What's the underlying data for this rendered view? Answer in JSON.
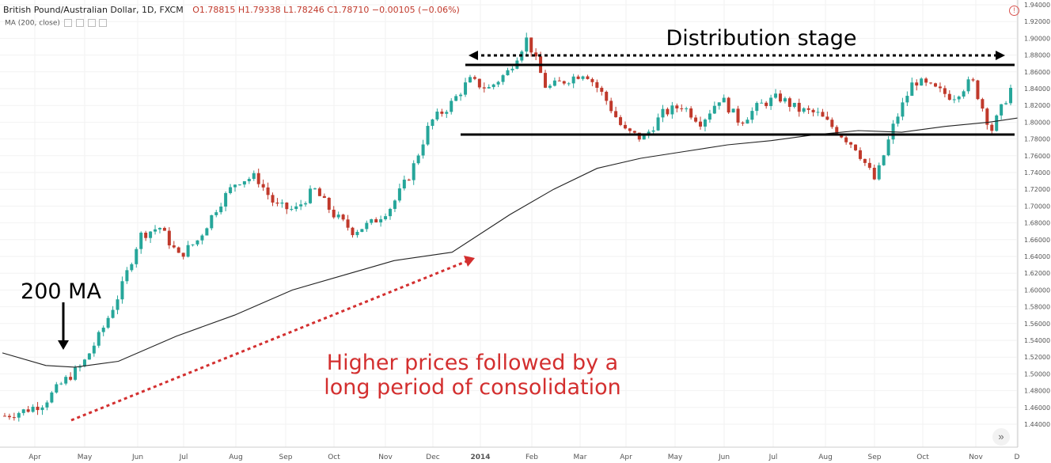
{
  "header": {
    "symbol": "British Pound/Australian Dollar, 1D, FXCM",
    "open": "O1.78815",
    "high": "H1.79338",
    "low": "L1.78246",
    "close": "C1.78710",
    "change": "−0.00105 (−0.06%)"
  },
  "indicator_label": "MA (200, close)",
  "alert_icon": "alert-icon",
  "scroll_icon": "double-chevron-right-icon",
  "colors": {
    "up": "#26a69a",
    "down": "#c0392b",
    "ma": "#222222",
    "annotation_red": "#d32f2f"
  },
  "chart_data": {
    "type": "candlestick",
    "instrument": "GBP/AUD",
    "ylim": [
      1.42,
      1.94
    ],
    "y_ticks": [
      "1.94000",
      "1.92000",
      "1.90000",
      "1.88000",
      "1.86000",
      "1.84000",
      "1.82000",
      "1.80000",
      "1.78000",
      "1.76000",
      "1.74000",
      "1.72000",
      "1.70000",
      "1.68000",
      "1.66000",
      "1.64000",
      "1.62000",
      "1.60000",
      "1.58000",
      "1.56000",
      "1.54000",
      "1.52000",
      "1.50000",
      "1.48000",
      "1.46000",
      "1.44000"
    ],
    "x_labels": [
      "Apr",
      "May",
      "Jun",
      "Jul",
      "Aug",
      "Sep",
      "Oct",
      "Nov",
      "Dec",
      "2014",
      "Feb",
      "Mar",
      "Apr",
      "May",
      "Jun",
      "Jul",
      "Aug",
      "Sep",
      "Oct",
      "Nov",
      "D"
    ],
    "price_path": [
      [
        0,
        1.45
      ],
      [
        1,
        1.456
      ],
      [
        2,
        1.465
      ],
      [
        3,
        1.49
      ],
      [
        4,
        1.51
      ],
      [
        5,
        1.55
      ],
      [
        6,
        1.6
      ],
      [
        7,
        1.665
      ],
      [
        8,
        1.675
      ],
      [
        9,
        1.64
      ],
      [
        10,
        1.66
      ],
      [
        11,
        1.7
      ],
      [
        12,
        1.73
      ],
      [
        13,
        1.735
      ],
      [
        14,
        1.7
      ],
      [
        15,
        1.695
      ],
      [
        16,
        1.72
      ],
      [
        17,
        1.69
      ],
      [
        18,
        1.67
      ],
      [
        19,
        1.68
      ],
      [
        20,
        1.7
      ],
      [
        21,
        1.74
      ],
      [
        22,
        1.8
      ],
      [
        23,
        1.82
      ],
      [
        24,
        1.85
      ],
      [
        25,
        1.84
      ],
      [
        26,
        1.86
      ],
      [
        27,
        1.9
      ],
      [
        28,
        1.84
      ],
      [
        29,
        1.85
      ],
      [
        30,
        1.86
      ],
      [
        31,
        1.83
      ],
      [
        32,
        1.79
      ],
      [
        33,
        1.78
      ],
      [
        34,
        1.81
      ],
      [
        35,
        1.82
      ],
      [
        36,
        1.8
      ],
      [
        37,
        1.83
      ],
      [
        38,
        1.8
      ],
      [
        39,
        1.82
      ],
      [
        40,
        1.83
      ],
      [
        41,
        1.815
      ],
      [
        42,
        1.81
      ],
      [
        43,
        1.79
      ],
      [
        44,
        1.77
      ],
      [
        45,
        1.73
      ],
      [
        46,
        1.8
      ],
      [
        47,
        1.85
      ],
      [
        48,
        1.84
      ],
      [
        49,
        1.83
      ],
      [
        50,
        1.85
      ],
      [
        51,
        1.79
      ],
      [
        52,
        1.84
      ]
    ],
    "ma_200": [
      [
        0,
        1.525
      ],
      [
        3,
        1.51
      ],
      [
        5,
        1.508
      ],
      [
        8,
        1.515
      ],
      [
        12,
        1.545
      ],
      [
        16,
        1.57
      ],
      [
        20,
        1.6
      ],
      [
        24,
        1.62
      ],
      [
        27,
        1.635
      ],
      [
        31,
        1.645
      ],
      [
        35,
        1.69
      ],
      [
        38,
        1.72
      ],
      [
        41,
        1.745
      ],
      [
        44,
        1.757
      ],
      [
        47,
        1.765
      ],
      [
        50,
        1.773
      ],
      [
        53,
        1.778
      ],
      [
        56,
        1.785
      ],
      [
        59,
        1.79
      ],
      [
        62,
        1.788
      ],
      [
        65,
        1.795
      ],
      [
        68,
        1.8
      ],
      [
        70,
        1.805
      ]
    ],
    "lines": [
      {
        "name": "resistance",
        "y": 1.867
      },
      {
        "name": "support",
        "y": 1.783
      }
    ],
    "annotations": {
      "distribution_label": "Distribution stage",
      "ma_label": "200 MA",
      "comment_line1": "Higher prices followed by a",
      "comment_line2": "long period of consolidation"
    }
  }
}
